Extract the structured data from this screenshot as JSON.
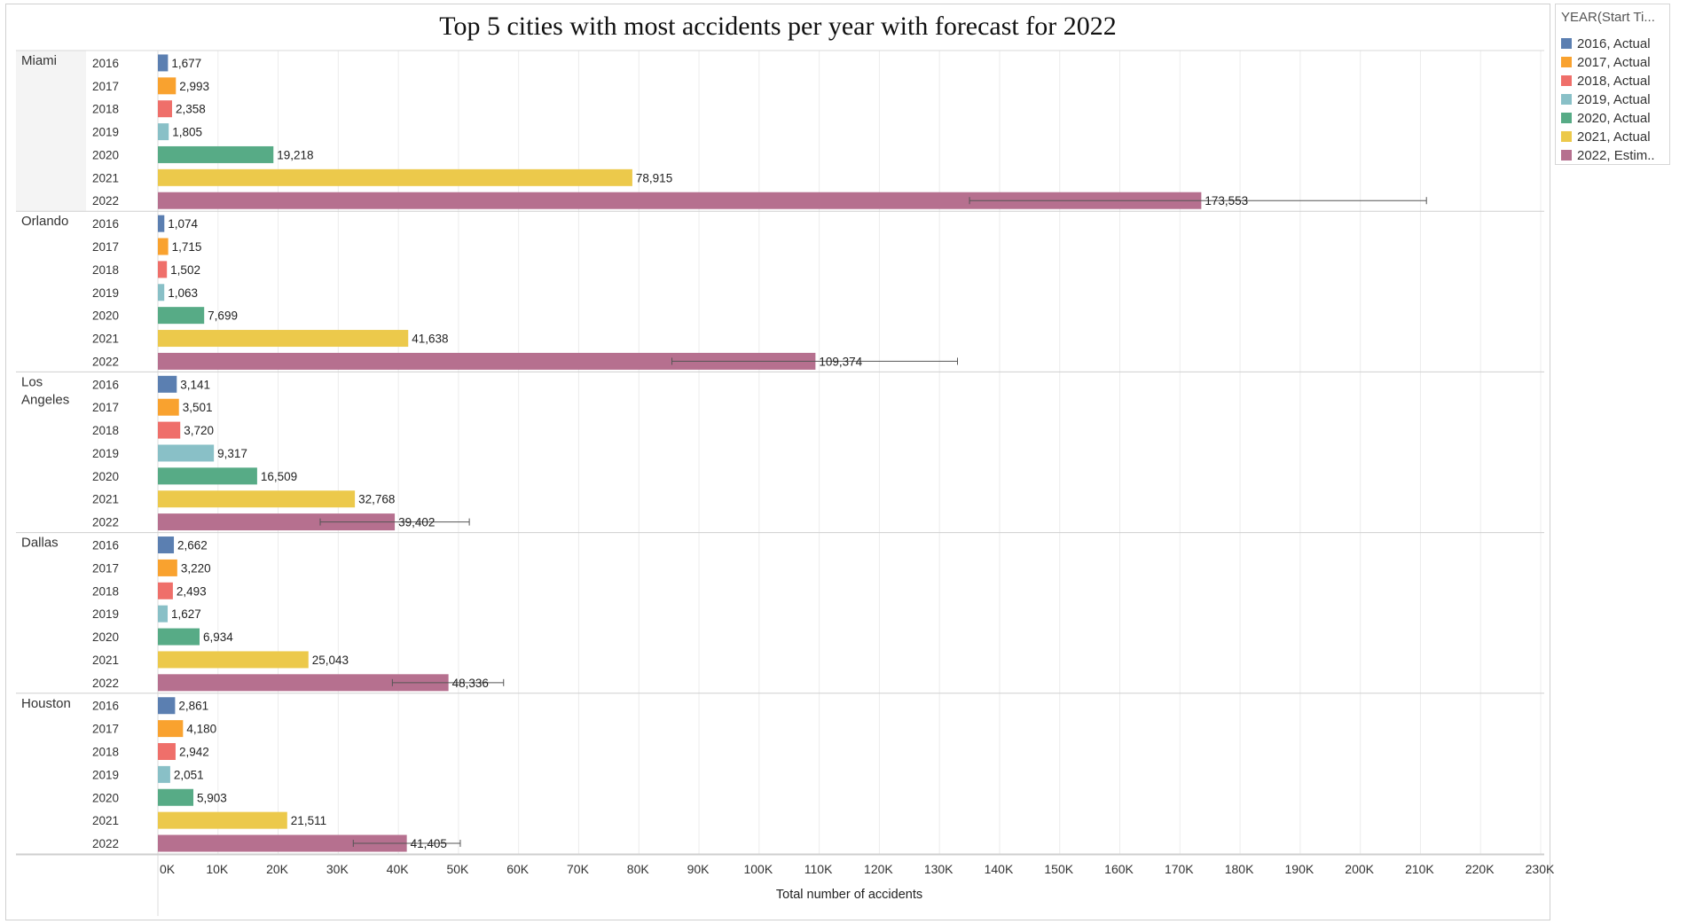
{
  "chart_data": {
    "type": "bar",
    "orientation": "horizontal",
    "title": "Top 5 cities with most accidents per year with forecast for 2022",
    "xlabel": "Total number of accidents",
    "ylabel": "",
    "xlim": [
      0,
      230000
    ],
    "ticks": [
      "0K",
      "10K",
      "20K",
      "30K",
      "40K",
      "50K",
      "60K",
      "70K",
      "80K",
      "90K",
      "100K",
      "110K",
      "120K",
      "130K",
      "140K",
      "150K",
      "160K",
      "170K",
      "180K",
      "190K",
      "200K",
      "210K",
      "220K",
      "230K"
    ],
    "grid": true,
    "legend_position": "right",
    "legend_title": "YEAR(Start Ti...",
    "legend": [
      {
        "label": "2016, Actual",
        "color": "#5b7fb1"
      },
      {
        "label": "2017, Actual",
        "color": "#f9a22f"
      },
      {
        "label": "2018, Actual",
        "color": "#ef6f6a"
      },
      {
        "label": "2019, Actual",
        "color": "#89c0c7"
      },
      {
        "label": "2020, Actual",
        "color": "#57ab86"
      },
      {
        "label": "2021, Actual",
        "color": "#ecc94b"
      },
      {
        "label": "2022, Estim..",
        "color": "#b6708f"
      }
    ],
    "years": [
      "2016",
      "2017",
      "2018",
      "2019",
      "2020",
      "2021",
      "2022"
    ],
    "groups": [
      {
        "city_lines": [
          "Miami"
        ],
        "values": [
          1677,
          2993,
          2358,
          1805,
          19218,
          78915,
          173553
        ],
        "labels": [
          "1,677",
          "2,993",
          "2,358",
          "1,805",
          "19,218",
          "78,915",
          "173,553"
        ],
        "forecast_interval": [
          135000,
          211000
        ]
      },
      {
        "city_lines": [
          "Orlando"
        ],
        "values": [
          1074,
          1715,
          1502,
          1063,
          7699,
          41638,
          109374
        ],
        "labels": [
          "1,074",
          "1,715",
          "1,502",
          "1,063",
          "7,699",
          "41,638",
          "109,374"
        ],
        "forecast_interval": [
          85500,
          133000
        ]
      },
      {
        "city_lines": [
          "Los",
          "Angeles"
        ],
        "values": [
          3141,
          3501,
          3720,
          9317,
          16509,
          32768,
          39402
        ],
        "labels": [
          "3,141",
          "3,501",
          "3,720",
          "9,317",
          "16,509",
          "32,768",
          "39,402"
        ],
        "forecast_interval": [
          27000,
          51800
        ]
      },
      {
        "city_lines": [
          "Dallas"
        ],
        "values": [
          2662,
          3220,
          2493,
          1627,
          6934,
          25043,
          48336
        ],
        "labels": [
          "2,662",
          "3,220",
          "2,493",
          "1,627",
          "6,934",
          "25,043",
          "48,336"
        ],
        "forecast_interval": [
          39000,
          57500
        ]
      },
      {
        "city_lines": [
          "Houston"
        ],
        "values": [
          2861,
          4180,
          2942,
          2051,
          5903,
          21511,
          41405
        ],
        "labels": [
          "2,861",
          "4,180",
          "2,942",
          "2,051",
          "5,903",
          "21,511",
          "41,405"
        ],
        "forecast_interval": [
          32500,
          50300
        ]
      }
    ]
  }
}
